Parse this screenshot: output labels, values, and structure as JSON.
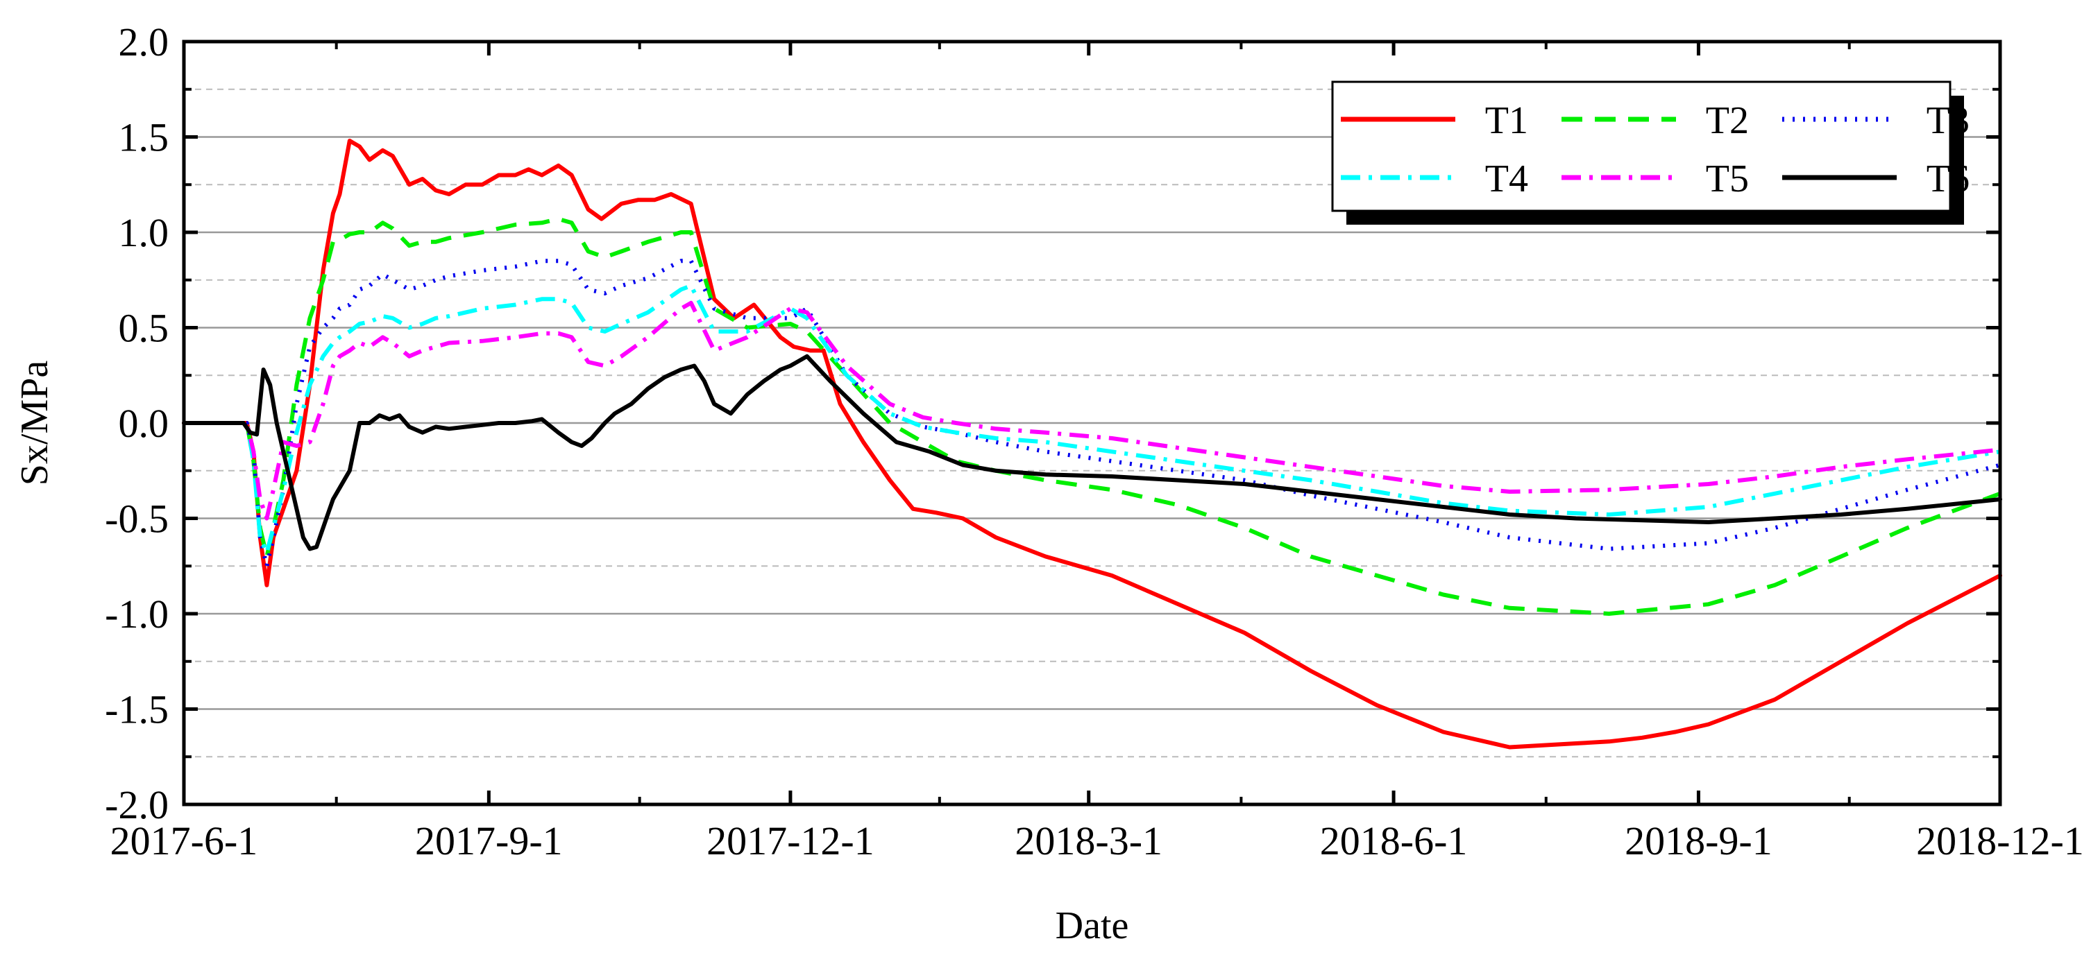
{
  "chart_data": {
    "type": "line",
    "title": "",
    "xlabel": "Date",
    "ylabel": "Sx/MPa",
    "x_unit": "days since 2017-6-1",
    "xlim": [
      0,
      548
    ],
    "ylim": [
      -2.0,
      2.0
    ],
    "x_ticks": [
      {
        "label": "2017-6-1",
        "day": 0
      },
      {
        "label": "2017-9-1",
        "day": 92
      },
      {
        "label": "2017-12-1",
        "day": 183
      },
      {
        "label": "2018-3-1",
        "day": 273
      },
      {
        "label": "2018-6-1",
        "day": 365
      },
      {
        "label": "2018-9-1",
        "day": 457
      },
      {
        "label": "2018-12-1",
        "day": 548
      }
    ],
    "y_ticks": [
      {
        "label": "2.0",
        "value": 2.0
      },
      {
        "label": "1.5",
        "value": 1.5
      },
      {
        "label": "1.0",
        "value": 1.0
      },
      {
        "label": "0.5",
        "value": 0.5
      },
      {
        "label": "0.0",
        "value": 0.0
      },
      {
        "label": "-0.5",
        "value": -0.5
      },
      {
        "label": "-1.0",
        "value": -1.0
      },
      {
        "label": "-1.5",
        "value": -1.5
      },
      {
        "label": "-2.0",
        "value": -2.0
      }
    ],
    "minor_y_gridlines": [
      1.75,
      1.25,
      0.75,
      0.25,
      -0.25,
      -0.75,
      -1.25,
      -1.75
    ],
    "grid": true,
    "legend_position": "top-right",
    "series": [
      {
        "name": "T1",
        "color": "#ff0000",
        "dash": "solid",
        "width": 6,
        "x": [
          0,
          19,
          21,
          23,
          25,
          27,
          30,
          34,
          38,
          42,
          45,
          47,
          50,
          53,
          56,
          60,
          63,
          68,
          72,
          76,
          80,
          85,
          90,
          95,
          100,
          104,
          108,
          113,
          117,
          122,
          126,
          132,
          137,
          142,
          147,
          153,
          160,
          166,
          172,
          180,
          184,
          189,
          193,
          198,
          205,
          213,
          220,
          227,
          235,
          245,
          260,
          280,
          300,
          320,
          340,
          360,
          380,
          400,
          420,
          430,
          440,
          450,
          460,
          480,
          500,
          520,
          548
        ],
        "values": [
          0,
          0,
          -0.15,
          -0.6,
          -0.85,
          -0.6,
          -0.45,
          -0.25,
          0.2,
          0.8,
          1.1,
          1.2,
          1.48,
          1.45,
          1.38,
          1.43,
          1.4,
          1.25,
          1.28,
          1.22,
          1.2,
          1.25,
          1.25,
          1.3,
          1.3,
          1.33,
          1.3,
          1.35,
          1.3,
          1.12,
          1.07,
          1.15,
          1.17,
          1.17,
          1.2,
          1.15,
          0.65,
          0.55,
          0.62,
          0.45,
          0.4,
          0.38,
          0.38,
          0.1,
          -0.1,
          -0.3,
          -0.45,
          -0.47,
          -0.5,
          -0.6,
          -0.7,
          -0.8,
          -0.95,
          -1.1,
          -1.3,
          -1.48,
          -1.62,
          -1.7,
          -1.68,
          -1.67,
          -1.65,
          -1.62,
          -1.58,
          -1.45,
          -1.25,
          -1.05,
          -0.8
        ]
      },
      {
        "name": "T2",
        "color": "#00ee00",
        "dash": "30,18",
        "width": 6,
        "x": [
          0,
          19,
          21,
          23,
          25,
          27,
          30,
          34,
          38,
          42,
          45,
          47,
          50,
          53,
          56,
          60,
          63,
          68,
          72,
          76,
          80,
          90,
          100,
          108,
          113,
          117,
          122,
          127,
          132,
          140,
          150,
          153,
          160,
          170,
          183,
          188,
          200,
          213,
          223,
          233,
          245,
          260,
          280,
          300,
          320,
          340,
          360,
          380,
          400,
          430,
          460,
          480,
          500,
          520,
          548
        ],
        "values": [
          0,
          0,
          -0.2,
          -0.55,
          -0.7,
          -0.55,
          -0.3,
          0.2,
          0.55,
          0.75,
          0.95,
          0.96,
          0.99,
          1.0,
          1.0,
          1.05,
          1.02,
          0.93,
          0.95,
          0.95,
          0.97,
          1.0,
          1.04,
          1.05,
          1.07,
          1.05,
          0.9,
          0.87,
          0.9,
          0.95,
          1.0,
          1.0,
          0.6,
          0.5,
          0.52,
          0.48,
          0.25,
          0.0,
          -0.1,
          -0.2,
          -0.25,
          -0.3,
          -0.35,
          -0.43,
          -0.55,
          -0.7,
          -0.8,
          -0.9,
          -0.97,
          -1.0,
          -0.95,
          -0.85,
          -0.7,
          -0.55,
          -0.37
        ]
      },
      {
        "name": "T3",
        "color": "#0000ee",
        "dash": "3,12",
        "width": 6,
        "x": [
          0,
          19,
          21,
          23,
          25,
          27,
          30,
          34,
          38,
          42,
          45,
          47,
          50,
          53,
          56,
          60,
          63,
          68,
          72,
          76,
          80,
          90,
          100,
          108,
          113,
          117,
          122,
          127,
          132,
          140,
          150,
          153,
          160,
          170,
          183,
          188,
          200,
          213,
          223,
          233,
          245,
          260,
          280,
          300,
          320,
          340,
          360,
          380,
          400,
          430,
          460,
          480,
          500,
          520,
          548
        ],
        "values": [
          0,
          0,
          -0.15,
          -0.6,
          -0.75,
          -0.6,
          -0.35,
          0.1,
          0.4,
          0.5,
          0.55,
          0.6,
          0.62,
          0.7,
          0.72,
          0.78,
          0.75,
          0.7,
          0.72,
          0.75,
          0.77,
          0.8,
          0.82,
          0.85,
          0.85,
          0.83,
          0.7,
          0.68,
          0.72,
          0.76,
          0.85,
          0.85,
          0.6,
          0.55,
          0.55,
          0.6,
          0.25,
          0.05,
          -0.02,
          -0.05,
          -0.1,
          -0.15,
          -0.2,
          -0.25,
          -0.3,
          -0.38,
          -0.45,
          -0.52,
          -0.6,
          -0.66,
          -0.63,
          -0.55,
          -0.45,
          -0.35,
          -0.22
        ]
      },
      {
        "name": "T4",
        "color": "#00ffff",
        "dash": "28,12,5,12",
        "width": 6,
        "x": [
          0,
          19,
          21,
          23,
          25,
          27,
          30,
          34,
          38,
          42,
          45,
          47,
          50,
          53,
          56,
          60,
          63,
          68,
          72,
          76,
          80,
          90,
          100,
          108,
          113,
          117,
          122,
          127,
          132,
          140,
          150,
          153,
          160,
          170,
          183,
          188,
          200,
          213,
          223,
          233,
          245,
          260,
          280,
          300,
          320,
          340,
          360,
          380,
          400,
          430,
          460,
          480,
          500,
          520,
          548
        ],
        "values": [
          0,
          0,
          -0.2,
          -0.6,
          -0.68,
          -0.55,
          -0.35,
          -0.05,
          0.2,
          0.35,
          0.42,
          0.45,
          0.48,
          0.52,
          0.53,
          0.56,
          0.55,
          0.5,
          0.52,
          0.55,
          0.56,
          0.6,
          0.62,
          0.65,
          0.65,
          0.63,
          0.5,
          0.48,
          0.52,
          0.58,
          0.7,
          0.72,
          0.48,
          0.48,
          0.6,
          0.55,
          0.25,
          0.05,
          -0.02,
          -0.05,
          -0.08,
          -0.1,
          -0.15,
          -0.2,
          -0.25,
          -0.3,
          -0.36,
          -0.42,
          -0.46,
          -0.48,
          -0.44,
          -0.37,
          -0.3,
          -0.23,
          -0.15
        ]
      },
      {
        "name": "T5",
        "color": "#ff00ff",
        "dash": "28,12,5,12",
        "width": 6,
        "x": [
          0,
          19,
          21,
          23,
          25,
          27,
          30,
          34,
          38,
          42,
          45,
          47,
          50,
          53,
          56,
          60,
          63,
          68,
          72,
          76,
          80,
          90,
          100,
          108,
          113,
          117,
          122,
          127,
          132,
          140,
          150,
          153,
          160,
          170,
          183,
          188,
          200,
          213,
          223,
          233,
          245,
          260,
          280,
          300,
          320,
          340,
          360,
          380,
          400,
          430,
          460,
          480,
          500,
          520,
          548
        ],
        "values": [
          0,
          0,
          -0.15,
          -0.4,
          -0.5,
          -0.35,
          -0.1,
          -0.12,
          -0.1,
          0.1,
          0.3,
          0.35,
          0.38,
          0.42,
          0.4,
          0.45,
          0.42,
          0.35,
          0.38,
          0.4,
          0.42,
          0.43,
          0.45,
          0.47,
          0.47,
          0.45,
          0.32,
          0.3,
          0.35,
          0.45,
          0.6,
          0.63,
          0.38,
          0.45,
          0.6,
          0.58,
          0.3,
          0.1,
          0.03,
          0.0,
          -0.03,
          -0.05,
          -0.08,
          -0.13,
          -0.18,
          -0.23,
          -0.28,
          -0.33,
          -0.36,
          -0.35,
          -0.32,
          -0.28,
          -0.23,
          -0.19,
          -0.14
        ]
      },
      {
        "name": "T6",
        "color": "#000000",
        "dash": "solid",
        "width": 6,
        "x": [
          0,
          18,
          20,
          22,
          24,
          26,
          28,
          32,
          36,
          38,
          40,
          43,
          45,
          50,
          53,
          56,
          59,
          62,
          65,
          68,
          72,
          76,
          80,
          85,
          90,
          95,
          100,
          105,
          108,
          113,
          117,
          120,
          123,
          127,
          130,
          135,
          140,
          145,
          150,
          154,
          157,
          160,
          165,
          170,
          175,
          180,
          183,
          188,
          195,
          205,
          215,
          225,
          235,
          245,
          260,
          280,
          300,
          320,
          340,
          360,
          380,
          400,
          420,
          440,
          460,
          480,
          500,
          520,
          548
        ],
        "values": [
          0,
          0,
          -0.05,
          -0.06,
          0.28,
          0.2,
          0.0,
          -0.3,
          -0.6,
          -0.66,
          -0.65,
          -0.5,
          -0.4,
          -0.25,
          0.0,
          0.0,
          0.04,
          0.02,
          0.04,
          -0.02,
          -0.05,
          -0.02,
          -0.03,
          -0.02,
          -0.01,
          0.0,
          0.0,
          0.01,
          0.02,
          -0.05,
          -0.1,
          -0.12,
          -0.08,
          0.0,
          0.05,
          0.1,
          0.18,
          0.24,
          0.28,
          0.3,
          0.22,
          0.1,
          0.05,
          0.15,
          0.22,
          0.28,
          0.3,
          0.35,
          0.22,
          0.05,
          -0.1,
          -0.15,
          -0.22,
          -0.25,
          -0.27,
          -0.28,
          -0.3,
          -0.32,
          -0.36,
          -0.4,
          -0.44,
          -0.48,
          -0.5,
          -0.51,
          -0.52,
          -0.5,
          -0.48,
          -0.45,
          -0.4
        ]
      }
    ]
  }
}
